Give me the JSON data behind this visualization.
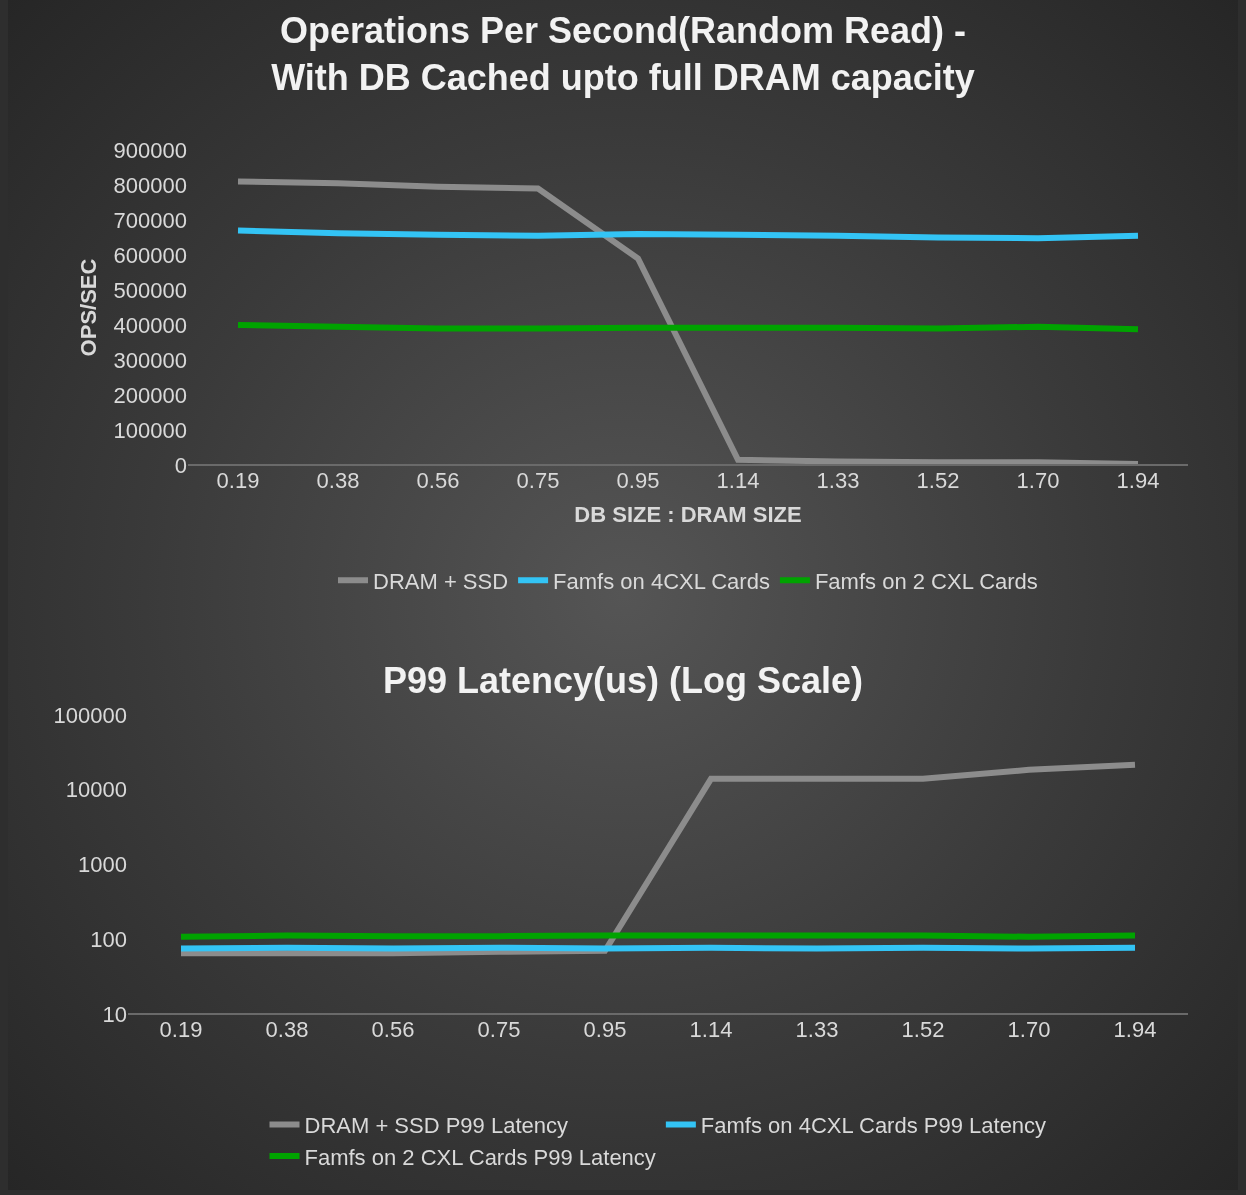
{
  "chart_data": [
    {
      "type": "line",
      "title": "Operations Per Second(Random Read) -\nWith DB Cached upto full DRAM capacity",
      "xlabel": "DB SIZE : DRAM SIZE",
      "ylabel": "OPS/SEC",
      "categories": [
        "0.19",
        "0.38",
        "0.56",
        "0.75",
        "0.95",
        "1.14",
        "1.33",
        "1.52",
        "1.70",
        "1.94"
      ],
      "series": [
        {
          "name": "DRAM + SSD",
          "color": "#8c8c8c",
          "values": [
            810000,
            805000,
            795000,
            790000,
            590000,
            15000,
            10000,
            8000,
            8000,
            3000
          ]
        },
        {
          "name": "Famfs on 4CXL Cards",
          "color": "#33c4f5",
          "values": [
            670000,
            662000,
            658000,
            655000,
            660000,
            658000,
            655000,
            650000,
            648000,
            655000
          ]
        },
        {
          "name": "Famfs on 2 CXL Cards",
          "color": "#00a300",
          "values": [
            400000,
            395000,
            390000,
            390000,
            392000,
            392000,
            392000,
            390000,
            395000,
            388000
          ]
        }
      ],
      "ylim": [
        0,
        900000
      ],
      "yticks": [
        0,
        100000,
        200000,
        300000,
        400000,
        500000,
        600000,
        700000,
        800000,
        900000
      ],
      "grid": false,
      "legend": "bottom",
      "marker": "none",
      "line_style": "solid"
    },
    {
      "type": "line",
      "title": "P99 Latency(us) (Log Scale)",
      "categories": [
        "0.19",
        "0.38",
        "0.56",
        "0.75",
        "0.95",
        "1.14",
        "1.33",
        "1.52",
        "1.70",
        "1.94"
      ],
      "series": [
        {
          "name": "DRAM + SSD P99 Latency",
          "color": "#8c8c8c",
          "values": [
            65,
            65,
            65,
            68,
            70,
            14000,
            14000,
            14000,
            18500,
            21600
          ]
        },
        {
          "name": "Famfs on 4CXL Cards P99 Latency",
          "color": "#33c4f5",
          "values": [
            75,
            77,
            75,
            77,
            75,
            77,
            75,
            77,
            75,
            77
          ]
        },
        {
          "name": "Famfs on 2 CXL Cards P99 Latency",
          "color": "#00a300",
          "values": [
            108,
            112,
            110,
            110,
            112,
            112,
            112,
            112,
            108,
            112
          ]
        }
      ],
      "ylim": [
        10,
        100000
      ],
      "yticks": [
        10,
        100,
        1000,
        10000,
        100000
      ],
      "log": true,
      "grid": false,
      "legend": "bottom",
      "marker": "none",
      "line_style": "solid"
    }
  ]
}
